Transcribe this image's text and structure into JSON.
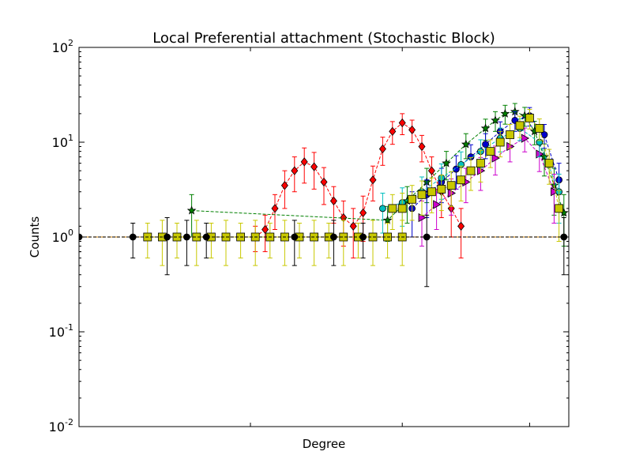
{
  "chart_data": {
    "type": "scatter",
    "title": "Local Preferential attachment (Stochastic Block)",
    "xlabel": "Degree",
    "ylabel": "Counts",
    "yscale": "log",
    "ylim": [
      0.01,
      100
    ],
    "xlim": [
      0,
      100
    ],
    "ytick_labels": [
      {
        "base": "10",
        "exp": "2",
        "value": 100
      },
      {
        "base": "10",
        "exp": "1",
        "value": 10
      },
      {
        "base": "10",
        "exp": "0",
        "value": 1
      },
      {
        "base": "10",
        "exp": "-1",
        "value": 0.1
      },
      {
        "base": "10",
        "exp": "-2",
        "value": 0.01
      }
    ],
    "xtick_positions": [
      35,
      66,
      92
    ],
    "grid": false,
    "legend": "none",
    "baseline": {
      "color": "#e8a33a",
      "x": [
        0,
        100
      ],
      "y": [
        1,
        1
      ]
    },
    "series": [
      {
        "color": "#ff0000",
        "marker": "diamond",
        "x": [
          36,
          38,
          40,
          42,
          44,
          46,
          48,
          50,
          52,
          54,
          56,
          58,
          60,
          62,
          64,
          66,
          68,
          70,
          72,
          74,
          76,
          78
        ],
        "y": [
          1.0,
          1.2,
          2.0,
          3.5,
          5.0,
          6.2,
          5.5,
          3.8,
          2.4,
          1.6,
          1.3,
          1.8,
          4.0,
          8.5,
          13.0,
          16.0,
          13.5,
          9.0,
          5.0,
          3.0,
          2.0,
          1.3
        ],
        "err": [
          0.3,
          0.5,
          0.8,
          1.5,
          2.0,
          2.5,
          2.3,
          1.6,
          1.0,
          0.8,
          0.7,
          0.9,
          1.6,
          2.8,
          3.5,
          4.0,
          3.6,
          2.8,
          2.0,
          1.4,
          1.0,
          0.7
        ]
      },
      {
        "color": "#008000",
        "marker": "star",
        "x": [
          23,
          63,
          67,
          71,
          75,
          79,
          83,
          85,
          87,
          89,
          91,
          93,
          95,
          97,
          99
        ],
        "y": [
          1.9,
          1.5,
          2.4,
          3.8,
          6.0,
          9.5,
          14.0,
          17.0,
          20.0,
          21.0,
          19.0,
          13.0,
          7.0,
          3.5,
          1.8
        ],
        "err": [
          0.9,
          0.6,
          1.0,
          1.5,
          2.0,
          2.8,
          3.5,
          4.0,
          4.5,
          4.6,
          4.3,
          3.6,
          2.6,
          1.8,
          1.0
        ]
      },
      {
        "color": "#0000cc",
        "marker": "circle",
        "x": [
          68,
          71,
          74,
          77,
          80,
          83,
          86,
          89,
          92,
          95,
          98
        ],
        "y": [
          2.0,
          2.8,
          3.8,
          5.2,
          7.0,
          9.5,
          13.0,
          17.0,
          19.0,
          12.0,
          4.0
        ],
        "err": [
          1.0,
          1.2,
          1.5,
          2.0,
          2.4,
          2.8,
          3.4,
          4.0,
          4.2,
          3.4,
          2.0
        ]
      },
      {
        "color": "#cc00cc",
        "marker": "triangle",
        "x": [
          70,
          73,
          76,
          79,
          82,
          85,
          88,
          91,
          94,
          97
        ],
        "y": [
          1.6,
          2.2,
          2.9,
          3.8,
          5.0,
          6.8,
          9.0,
          11.0,
          7.5,
          3.0
        ],
        "err": [
          0.8,
          1.0,
          1.2,
          1.5,
          1.9,
          2.3,
          2.8,
          3.1,
          2.6,
          1.6
        ]
      },
      {
        "color": "#00bfbf",
        "marker": "circle",
        "x": [
          62,
          66,
          70,
          74,
          78,
          82,
          86,
          90,
          94,
          98
        ],
        "y": [
          2.0,
          2.3,
          3.0,
          4.2,
          5.8,
          8.0,
          11.0,
          14.0,
          10.0,
          3.0
        ],
        "err": [
          0.9,
          1.0,
          1.3,
          1.7,
          2.1,
          2.6,
          3.1,
          3.6,
          3.0,
          1.6
        ]
      },
      {
        "color": "#c8c800",
        "marker": "square",
        "x": [
          64,
          66,
          68,
          70,
          72,
          74,
          76,
          78,
          80,
          82,
          84,
          86,
          88,
          90,
          92,
          94,
          96,
          98
        ],
        "y": [
          2.0,
          2.0,
          2.5,
          2.8,
          3.0,
          3.2,
          3.5,
          4.0,
          5.0,
          6.0,
          8.0,
          10.0,
          12.0,
          15.0,
          18.0,
          14.0,
          6.0,
          2.0
        ],
        "err": [
          0.8,
          0.9,
          1.0,
          1.1,
          1.2,
          1.3,
          1.4,
          1.6,
          1.9,
          2.2,
          2.6,
          3.0,
          3.4,
          3.8,
          4.2,
          3.6,
          2.4,
          1.1
        ]
      },
      {
        "color": "#c8c800",
        "marker": "square",
        "x": [
          14,
          17,
          20,
          24,
          27,
          30,
          33,
          36,
          39,
          42,
          45,
          48,
          51,
          54,
          57,
          60,
          63,
          66
        ],
        "y": [
          1.0,
          1.0,
          1.0,
          1.0,
          1.0,
          1.0,
          1.0,
          1.0,
          1.0,
          1.0,
          1.0,
          1.0,
          1.0,
          1.0,
          1.0,
          1.0,
          1.0,
          1.0
        ],
        "err": [
          0.4,
          0.5,
          0.4,
          0.5,
          0.4,
          0.5,
          0.4,
          0.5,
          0.4,
          0.5,
          0.4,
          0.5,
          0.4,
          0.5,
          0.4,
          0.5,
          0.4,
          0.5
        ]
      },
      {
        "color": "#000000",
        "marker": "circle",
        "x": [
          0,
          11,
          18,
          22,
          26,
          44,
          52,
          58,
          71,
          99
        ],
        "y": [
          1.0,
          1.0,
          1.0,
          1.0,
          1.0,
          1.0,
          1.0,
          1.0,
          1.0,
          1.0
        ],
        "err": [
          0.3,
          0.4,
          0.6,
          0.5,
          0.4,
          0.5,
          0.5,
          0.4,
          0.7,
          0.6
        ]
      }
    ]
  }
}
